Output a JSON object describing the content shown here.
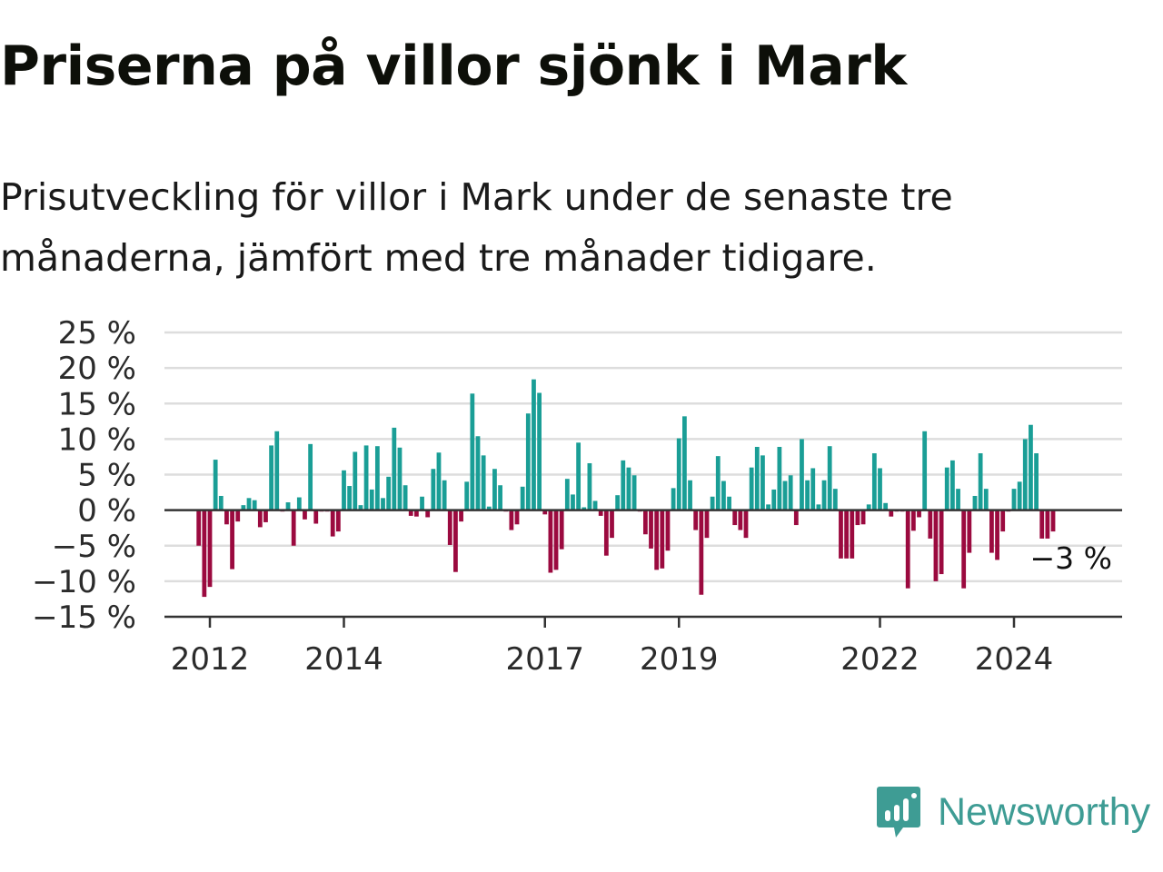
{
  "title": "Priserna på villor sjönk i Mark",
  "subtitle": "Prisutveckling för villor i Mark under de senaste tre månaderna, jämfört med tre månader tidigare.",
  "brand": {
    "name": "Newsworthy",
    "icon": "newsworthy-logo-icon",
    "color": "#3e9c94"
  },
  "colors": {
    "positive": "#1a9e96",
    "negative": "#9b0a3f",
    "grid": "#dddddd",
    "axis": "#333333"
  },
  "chart_data": {
    "type": "bar",
    "start": "2011-11",
    "frequency": "monthly",
    "ylim": [
      -15,
      25
    ],
    "yticks": [
      25,
      20,
      15,
      10,
      5,
      0,
      -5,
      -10,
      -15
    ],
    "ytick_labels": [
      "25 %",
      "20 %",
      "15 %",
      "10 %",
      "5 %",
      "0 %",
      "−5 %",
      "−10 %",
      "−15 %"
    ],
    "xticks": [
      "2012",
      "2014",
      "2017",
      "2019",
      "2022",
      "2024"
    ],
    "grid": true,
    "last_value_label": "−3 %",
    "values": [
      -5,
      -12.2,
      -10.8,
      7.1,
      2,
      -2,
      -8.3,
      -1.6,
      0.7,
      1.7,
      1.4,
      -2.4,
      -1.7,
      9.1,
      11.1,
      -0.2,
      1.1,
      -5,
      1.8,
      -1.3,
      9.3,
      -1.9,
      -0.2,
      -0.2,
      -3.7,
      -3,
      5.6,
      3.4,
      8.2,
      0.7,
      9.1,
      2.9,
      9,
      1.7,
      4.7,
      11.6,
      8.8,
      3.5,
      -0.8,
      -0.9,
      1.9,
      -1,
      5.8,
      8.1,
      4.2,
      -4.9,
      -8.7,
      -1.6,
      4,
      16.4,
      10.4,
      7.7,
      0.5,
      5.8,
      3.5,
      -0.2,
      -2.8,
      -2,
      3.3,
      13.6,
      18.4,
      16.5,
      -0.6,
      -8.8,
      -8.4,
      -5.5,
      4.4,
      2.2,
      9.5,
      0.4,
      6.6,
      1.3,
      -0.8,
      -6.4,
      -3.9,
      2.1,
      7,
      6,
      4.9,
      -0.2,
      -3.4,
      -5.4,
      -8.4,
      -8.2,
      -5.7,
      3.1,
      10.1,
      13.2,
      4.2,
      -2.8,
      -11.9,
      -3.9,
      1.9,
      7.6,
      4.1,
      1.9,
      -2.1,
      -2.8,
      -3.9,
      6,
      8.9,
      7.7,
      0.8,
      2.9,
      8.9,
      4.1,
      4.9,
      -2.1,
      10,
      4.2,
      5.9,
      0.8,
      4.2,
      9,
      3,
      -6.8,
      -6.8,
      -6.8,
      -2.1,
      -2,
      0.8,
      8,
      5.9,
      1,
      -0.9,
      -0.2,
      -0.2,
      -11,
      -2.9,
      -1,
      11.1,
      -4,
      -10,
      -9,
      6,
      7,
      3,
      -11,
      -6,
      2,
      8,
      3,
      -6,
      -7,
      -3,
      -0.2,
      3,
      4,
      10,
      12,
      8,
      -4,
      -4,
      -3
    ]
  }
}
